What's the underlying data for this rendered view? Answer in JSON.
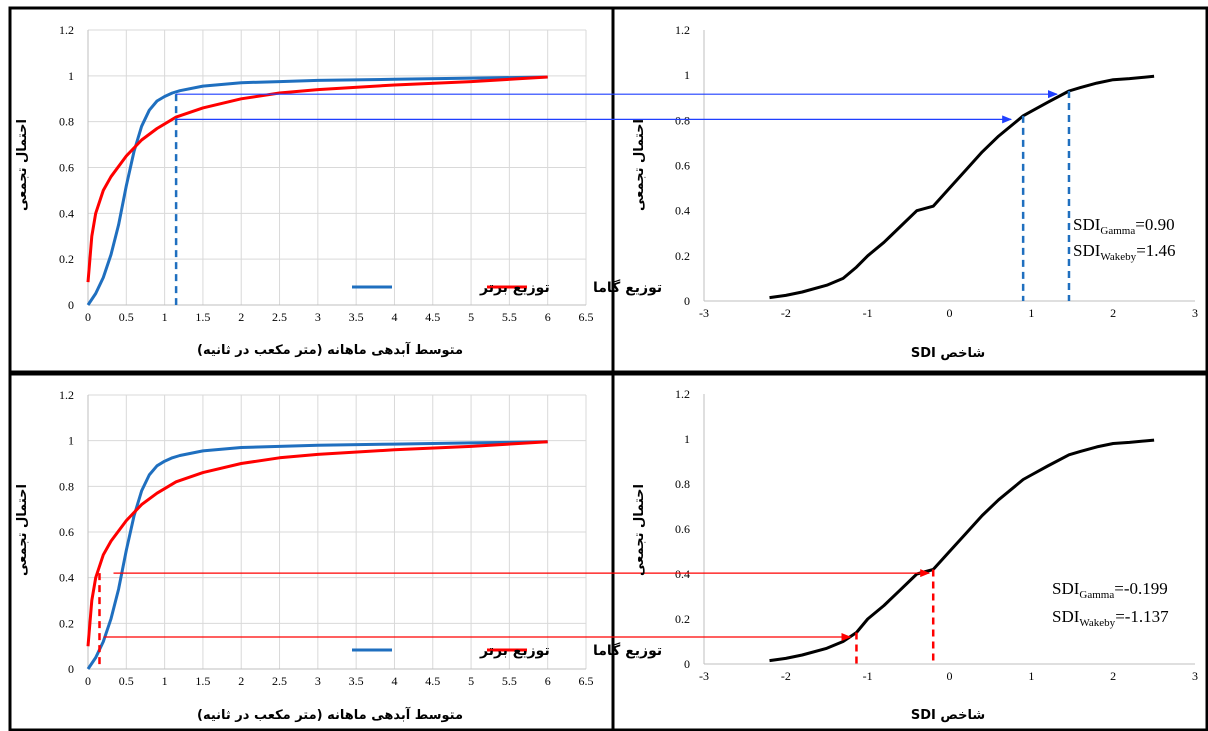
{
  "colors": {
    "blue": "#1f6fbf",
    "red": "#ff0000",
    "black": "#000000",
    "arrow_blue": "#1f3fff"
  },
  "flow_labels": {
    "xlabel": "متوسط آبدهی ماهانه (متر مکعب در ثانیه)",
    "ylabel": "احتمال تجمعی",
    "x_ticks": [
      "0",
      "0.5",
      "1",
      "1.5",
      "2",
      "2.5",
      "3",
      "3.5",
      "4",
      "4.5",
      "5",
      "5.5",
      "6",
      "6.5"
    ],
    "y_ticks": [
      "0",
      "0.2",
      "0.4",
      "0.6",
      "0.8",
      "1",
      "1.2"
    ],
    "legend_gamma": "توزیع گاما",
    "legend_wakeby": "توزیع برتر"
  },
  "sdi_labels": {
    "xlabel": "شاخص SDI",
    "ylabel": "احتمال تجمعی",
    "x_ticks": [
      "-3",
      "-2",
      "-1",
      "0",
      "1",
      "2",
      "3"
    ],
    "y_ticks": [
      "0",
      "0.2",
      "0.4",
      "0.6",
      "0.8",
      "1",
      "1.2"
    ]
  },
  "chart_data": [
    {
      "type": "line",
      "xlabel": "متوسط آبدهی ماهانه (متر مکعب در ثانیه)",
      "ylabel": "احتمال تجمعی",
      "xlim": [
        0,
        6.5
      ],
      "ylim": [
        0,
        1.2
      ],
      "grid": true,
      "legend": "bottom-right",
      "series": [
        {
          "name": "توزیع برتر",
          "color": "#1f6fbf",
          "x": [
            0,
            0.1,
            0.2,
            0.3,
            0.4,
            0.5,
            0.6,
            0.7,
            0.8,
            0.9,
            1.0,
            1.1,
            1.2,
            1.5,
            2.0,
            2.5,
            3,
            4,
            5,
            6
          ],
          "y": [
            0,
            0.05,
            0.12,
            0.22,
            0.35,
            0.52,
            0.67,
            0.78,
            0.85,
            0.89,
            0.91,
            0.925,
            0.935,
            0.955,
            0.97,
            0.975,
            0.98,
            0.985,
            0.99,
            0.995
          ]
        },
        {
          "name": "توزیع گاما",
          "color": "#ff0000",
          "x": [
            0,
            0.05,
            0.1,
            0.2,
            0.3,
            0.5,
            0.7,
            0.9,
            1.15,
            1.5,
            2.0,
            2.5,
            3,
            4,
            5,
            6
          ],
          "y": [
            0.1,
            0.3,
            0.4,
            0.5,
            0.56,
            0.65,
            0.72,
            0.77,
            0.82,
            0.86,
            0.9,
            0.925,
            0.94,
            0.96,
            0.975,
            0.995
          ]
        }
      ],
      "markers": {
        "x": 1.15,
        "y_wakeby": 0.92,
        "y_gamma": 0.81
      }
    },
    {
      "type": "line",
      "xlabel": "شاخص SDI",
      "ylabel": "احتمال تجمعی",
      "xlim": [
        -3,
        3
      ],
      "ylim": [
        0,
        1.2
      ],
      "grid": false,
      "series": [
        {
          "color": "#000000",
          "x": [
            -2.2,
            -2,
            -1.8,
            -1.5,
            -1.3,
            -1.137,
            -1,
            -0.8,
            -0.6,
            -0.4,
            -0.199,
            0,
            0.2,
            0.4,
            0.6,
            0.8,
            0.9,
            1.0,
            1.2,
            1.46,
            1.6,
            1.8,
            2.0,
            2.2,
            2.5
          ],
          "y": [
            0.015,
            0.025,
            0.04,
            0.07,
            0.1,
            0.15,
            0.2,
            0.26,
            0.33,
            0.4,
            0.42,
            0.5,
            0.58,
            0.66,
            0.73,
            0.79,
            0.82,
            0.84,
            0.88,
            0.93,
            0.945,
            0.965,
            0.98,
            0.985,
            0.995
          ]
        }
      ],
      "markers": {
        "x_gamma": 0.9,
        "x_wakeby": 1.46
      },
      "annotations": [
        {
          "base": "SDI",
          "sub": "Gamma",
          "value": "=0.90"
        },
        {
          "base": "SDI",
          "sub": "Wakeby",
          "value": "=1.46"
        }
      ]
    },
    {
      "type": "line",
      "xlabel": "متوسط آبدهی ماهانه (متر مکعب در ثانیه)",
      "ylabel": "احتمال تجمعی",
      "xlim": [
        0,
        6.5
      ],
      "ylim": [
        0,
        1.2
      ],
      "grid": true,
      "legend": "bottom-right",
      "series": [
        {
          "name": "توزیع برتر",
          "color": "#1f6fbf",
          "x": [
            0,
            0.1,
            0.2,
            0.3,
            0.4,
            0.5,
            0.6,
            0.7,
            0.8,
            0.9,
            1.0,
            1.1,
            1.2,
            1.5,
            2.0,
            2.5,
            3,
            4,
            5,
            6
          ],
          "y": [
            0,
            0.05,
            0.12,
            0.22,
            0.35,
            0.52,
            0.67,
            0.78,
            0.85,
            0.89,
            0.91,
            0.925,
            0.935,
            0.955,
            0.97,
            0.975,
            0.98,
            0.985,
            0.99,
            0.995
          ]
        },
        {
          "name": "توزیع گاما",
          "color": "#ff0000",
          "x": [
            0,
            0.05,
            0.1,
            0.2,
            0.3,
            0.5,
            0.7,
            0.9,
            1.15,
            1.5,
            2.0,
            2.5,
            3,
            4,
            5,
            6
          ],
          "y": [
            0.1,
            0.3,
            0.4,
            0.5,
            0.56,
            0.65,
            0.72,
            0.77,
            0.82,
            0.86,
            0.9,
            0.925,
            0.94,
            0.96,
            0.975,
            0.995
          ]
        }
      ],
      "markers": {
        "x": 0.15,
        "y_wakeby": 0.14,
        "y_gamma": 0.42
      }
    },
    {
      "type": "line",
      "xlabel": "شاخص SDI",
      "ylabel": "احتمال تجمعی",
      "xlim": [
        -3,
        3
      ],
      "ylim": [
        0,
        1.2
      ],
      "grid": false,
      "series": [
        {
          "color": "#000000",
          "x": [
            -2.2,
            -2,
            -1.8,
            -1.5,
            -1.3,
            -1.137,
            -1,
            -0.8,
            -0.6,
            -0.4,
            -0.199,
            0,
            0.2,
            0.4,
            0.6,
            0.8,
            0.9,
            1.0,
            1.2,
            1.46,
            1.6,
            1.8,
            2.0,
            2.2,
            2.5
          ],
          "y": [
            0.015,
            0.025,
            0.04,
            0.07,
            0.1,
            0.14,
            0.2,
            0.26,
            0.33,
            0.4,
            0.42,
            0.5,
            0.58,
            0.66,
            0.73,
            0.79,
            0.82,
            0.84,
            0.88,
            0.93,
            0.945,
            0.965,
            0.98,
            0.985,
            0.995
          ]
        }
      ],
      "markers": {
        "x_gamma": -0.199,
        "x_wakeby": -1.137
      },
      "annotations": [
        {
          "base": "SDI",
          "sub": "Gamma",
          "value": "=-0.199"
        },
        {
          "base": "SDI",
          "sub": "Wakeby",
          "value": "=-1.137"
        }
      ]
    }
  ]
}
